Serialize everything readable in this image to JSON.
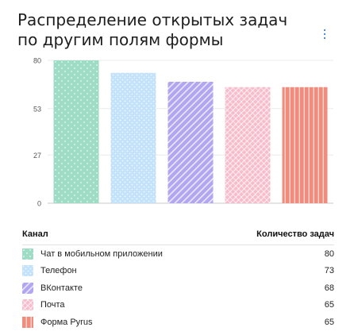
{
  "chart_data": {
    "type": "bar",
    "title": "Распределение открытых задач по другим полям формы",
    "categories": [
      "Чат в мобильном приложении",
      "Телефон",
      "ВКонтакте",
      "Почта",
      "Форма Pyrus"
    ],
    "values": [
      80,
      73,
      68,
      65,
      65
    ],
    "ylim": [
      0,
      80
    ],
    "yticks": [
      "0",
      "27",
      "53",
      "80"
    ],
    "ytick_values": [
      0,
      27,
      53,
      80
    ],
    "grid": true,
    "legend_placement": "bottom",
    "colors": [
      "#9fdcc5",
      "#c5e2fb",
      "#b2a6f0",
      "#f6bccb",
      "#f08c7d"
    ],
    "patterns": [
      "dots",
      "dots",
      "diagonal",
      "diagonal-cross",
      "vertical"
    ]
  },
  "legend": {
    "header_channel": "Канал",
    "header_count": "Количество задач",
    "items": [
      {
        "label": "Чат в мобильном приложении",
        "value": "80"
      },
      {
        "label": "Телефон",
        "value": "73"
      },
      {
        "label": "ВКонтакте",
        "value": "68"
      },
      {
        "label": "Почта",
        "value": "65"
      },
      {
        "label": "Форма Pyrus",
        "value": "65"
      }
    ]
  },
  "icons": {
    "menu": "more-vertical-icon"
  }
}
